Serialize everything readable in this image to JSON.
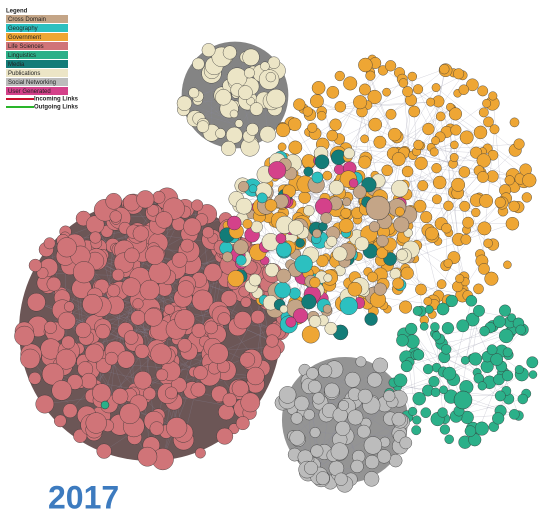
{
  "legend": {
    "title": "Legend",
    "items": [
      {
        "label": "Cross Domain",
        "color": "#c4a587"
      },
      {
        "label": "Geography",
        "color": "#2cc0c0"
      },
      {
        "label": "Government",
        "color": "#eea634"
      },
      {
        "label": "Life Sciences",
        "color": "#d07478"
      },
      {
        "label": "Linguistics",
        "color": "#2bb089"
      },
      {
        "label": "Media",
        "color": "#137c78"
      },
      {
        "label": "Publications",
        "color": "#ece5c6"
      },
      {
        "label": "Social Networking",
        "color": "#bcbcbc"
      },
      {
        "label": "User Generated",
        "color": "#d4418a"
      }
    ],
    "links": [
      {
        "label": "Incoming Links",
        "color": "#c8102e"
      },
      {
        "label": "Outgoing Links",
        "color": "#2ab52a"
      }
    ]
  },
  "year": "2017"
}
